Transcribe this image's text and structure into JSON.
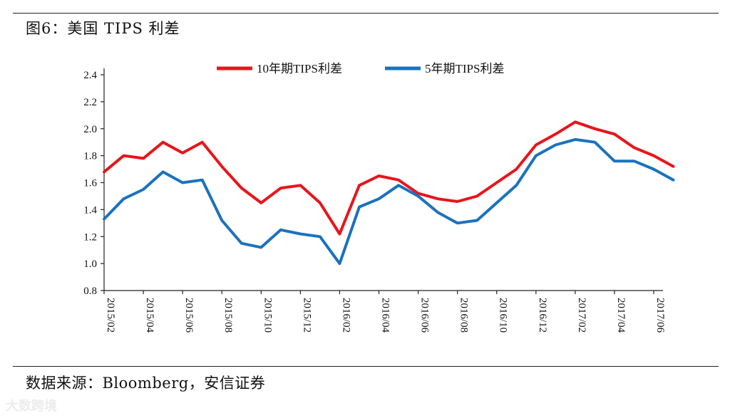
{
  "header": {
    "title": "图6：美国 TIPS 利差"
  },
  "footer": {
    "source": "数据来源：Bloomberg，安信证券",
    "watermark": "大数跨境"
  },
  "chart_data": {
    "type": "line",
    "title": "",
    "xlabel": "",
    "ylabel": "",
    "ylim": [
      0.8,
      2.4
    ],
    "yticks": [
      0.8,
      1.0,
      1.2,
      1.4,
      1.6,
      1.8,
      2.0,
      2.2,
      2.4
    ],
    "x_tick_labels": [
      "2015/02",
      "2015/04",
      "2015/06",
      "2015/08",
      "2015/10",
      "2015/12",
      "2016/02",
      "2016/04",
      "2016/06",
      "2016/08",
      "2016/10",
      "2016/12",
      "2017/02",
      "2017/04",
      "2017/06"
    ],
    "x_range": [
      "2015/02",
      "2017/07"
    ],
    "grid": false,
    "legend_position": "top-center",
    "series": [
      {
        "name": "10年期TIPS利差",
        "color": "#e8151b",
        "x": [
          "2015/02",
          "2015/03",
          "2015/04",
          "2015/05",
          "2015/06",
          "2015/07",
          "2015/08",
          "2015/09",
          "2015/10",
          "2015/11",
          "2015/12",
          "2016/01",
          "2016/02",
          "2016/03",
          "2016/04",
          "2016/05",
          "2016/06",
          "2016/07",
          "2016/08",
          "2016/09",
          "2016/10",
          "2016/11",
          "2016/12",
          "2017/01",
          "2017/02",
          "2017/03",
          "2017/04",
          "2017/05",
          "2017/06",
          "2017/07"
        ],
        "values": [
          1.68,
          1.8,
          1.78,
          1.9,
          1.82,
          1.9,
          1.72,
          1.56,
          1.45,
          1.56,
          1.58,
          1.45,
          1.22,
          1.58,
          1.65,
          1.62,
          1.52,
          1.48,
          1.46,
          1.5,
          1.6,
          1.7,
          1.88,
          1.96,
          2.05,
          2.0,
          1.96,
          1.86,
          1.8,
          1.72
        ]
      },
      {
        "name": "5年期TIPS利差",
        "color": "#1b72be",
        "x": [
          "2015/02",
          "2015/03",
          "2015/04",
          "2015/05",
          "2015/06",
          "2015/07",
          "2015/08",
          "2015/09",
          "2015/10",
          "2015/11",
          "2015/12",
          "2016/01",
          "2016/02",
          "2016/03",
          "2016/04",
          "2016/05",
          "2016/06",
          "2016/07",
          "2016/08",
          "2016/09",
          "2016/10",
          "2016/11",
          "2016/12",
          "2017/01",
          "2017/02",
          "2017/03",
          "2017/04",
          "2017/05",
          "2017/06",
          "2017/07"
        ],
        "values": [
          1.33,
          1.48,
          1.55,
          1.68,
          1.6,
          1.62,
          1.32,
          1.15,
          1.12,
          1.25,
          1.22,
          1.2,
          1.0,
          1.42,
          1.48,
          1.58,
          1.5,
          1.38,
          1.3,
          1.32,
          1.45,
          1.58,
          1.8,
          1.88,
          1.92,
          1.9,
          1.76,
          1.76,
          1.7,
          1.62
        ]
      }
    ]
  }
}
